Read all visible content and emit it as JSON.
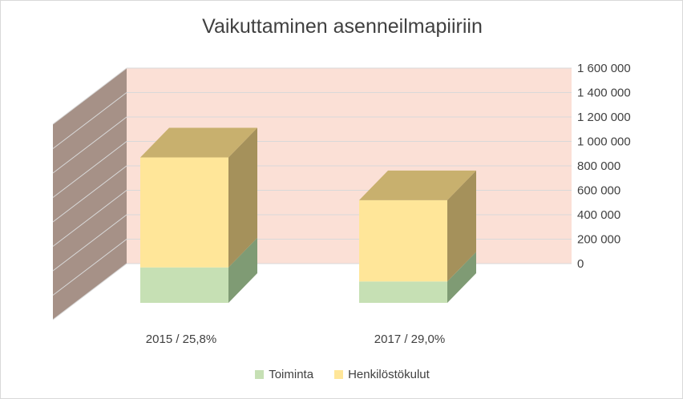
{
  "chart_data": {
    "type": "bar",
    "stacked": true,
    "view": "3d",
    "title": "Vaikuttaminen asenneilmapiiriin",
    "categories": [
      "2015 / 25,8%",
      "2017 / 29,0%"
    ],
    "series": [
      {
        "name": "Toiminta",
        "values": [
          290000,
          175000
        ],
        "color": "#c6e0b4",
        "side_color": "#7f9b74",
        "top_color": "#c6e0b4"
      },
      {
        "name": "Henkilöstökulut",
        "values": [
          900000,
          665000
        ],
        "color": "#ffe699",
        "side_color": "#a5915b",
        "top_color": "#c8b06e"
      }
    ],
    "ylim": [
      0,
      1600000
    ],
    "yticks": [
      0,
      200000,
      400000,
      600000,
      800000,
      1000000,
      1200000,
      1400000,
      1600000
    ],
    "ytick_labels": [
      "0",
      "200 000",
      "400 000",
      "600 000",
      "800 000",
      "1 000 000",
      "1 200 000",
      "1 400 000",
      "1 600 000"
    ],
    "grid": true,
    "legend_position": "bottom",
    "back_wall_color": "#fbe0d6",
    "side_wall_color": "#a69187"
  }
}
